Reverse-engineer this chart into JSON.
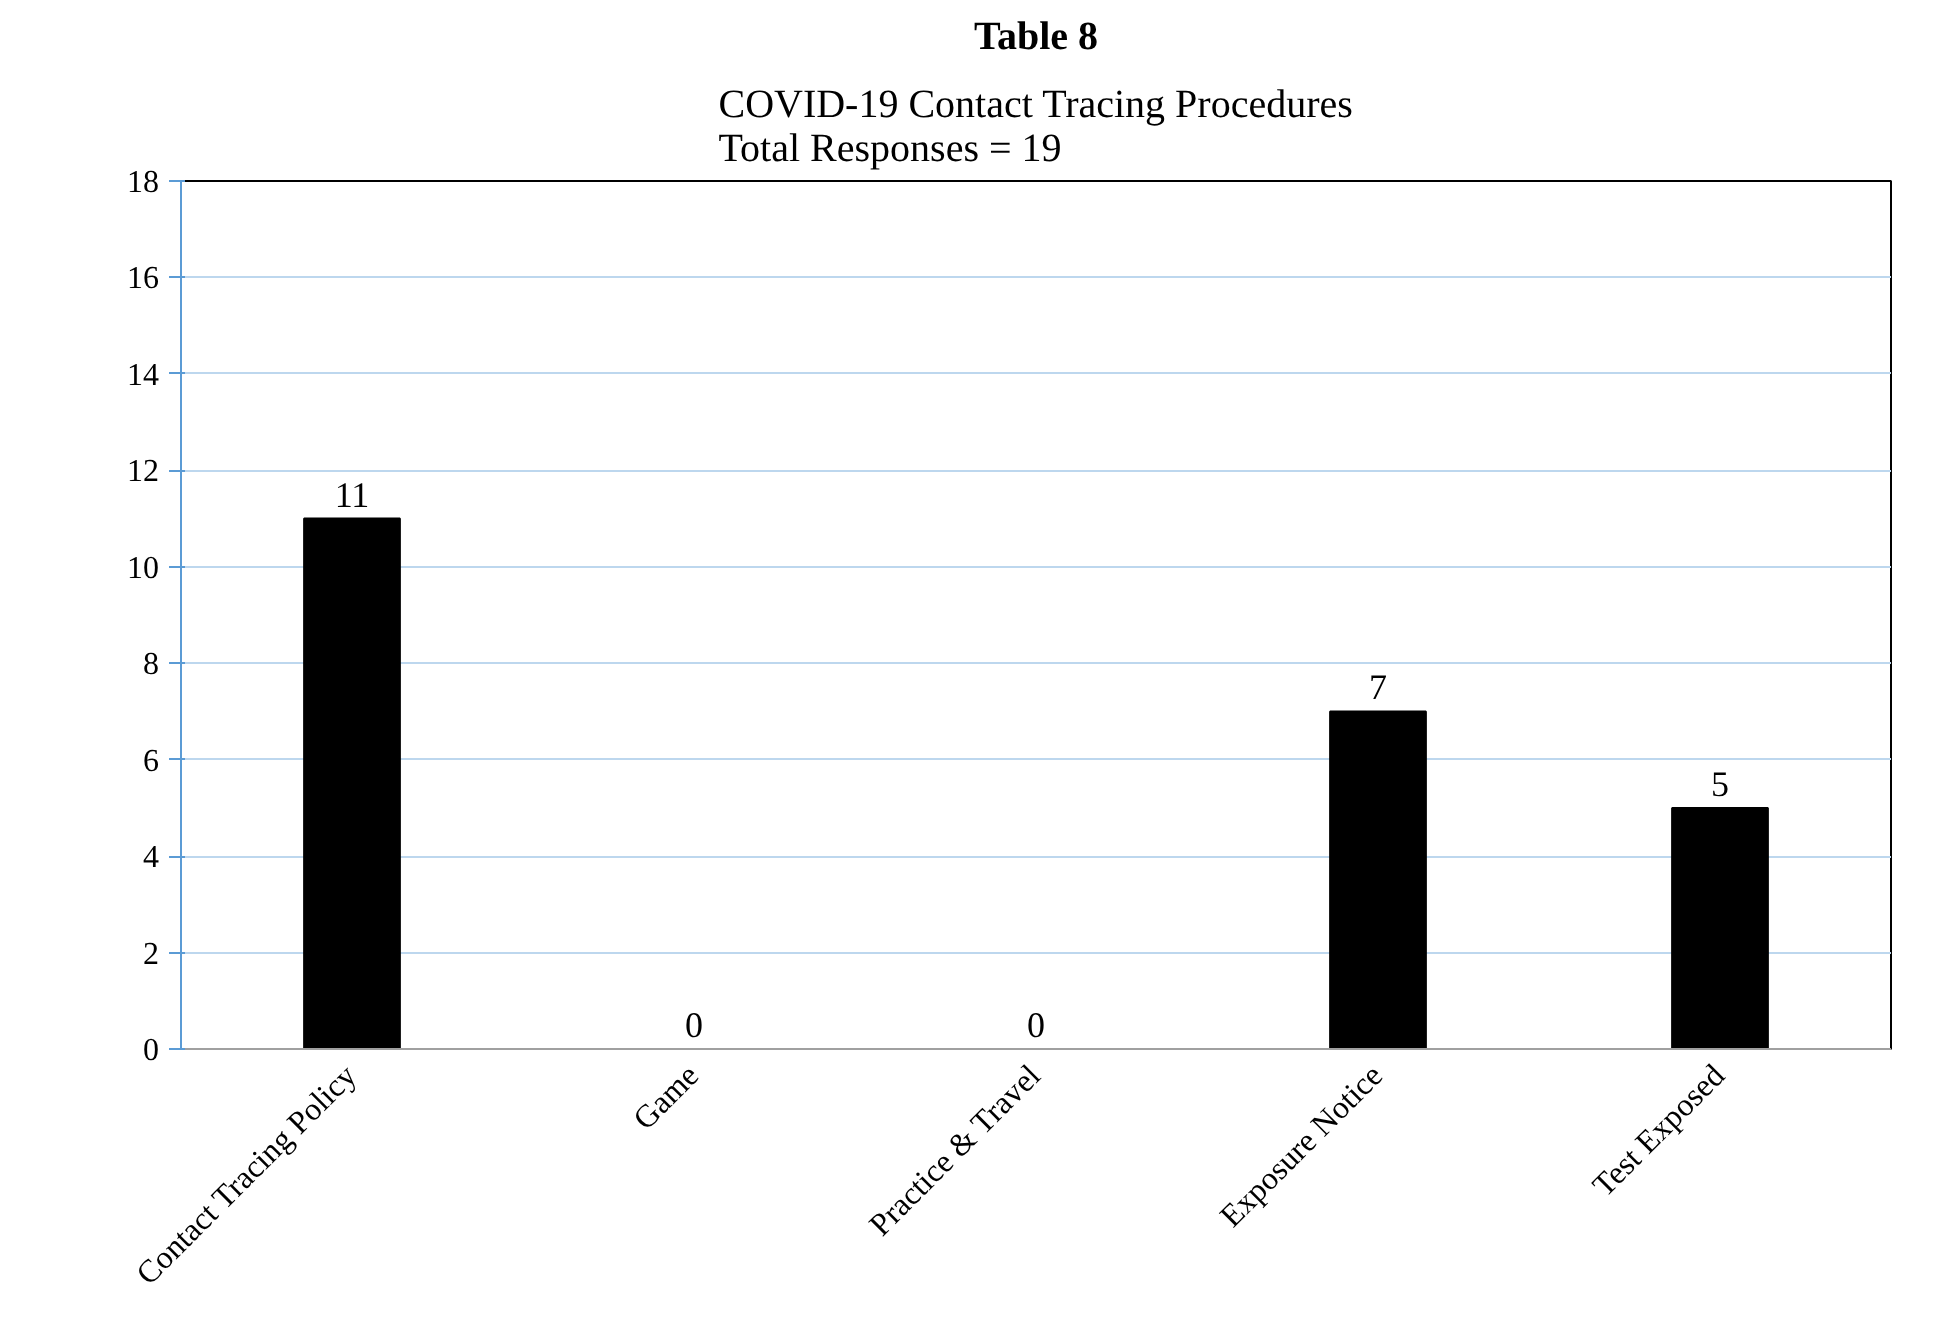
{
  "chart_data": {
    "type": "bar",
    "title": "Table 8",
    "subtitle": "COVID-19 Contact Tracing Procedures\nTotal Responses = 19",
    "categories": [
      "Contact Tracing Policy",
      "Game",
      "Practice & Travel",
      "Exposure Notice",
      "Test Exposed"
    ],
    "values": [
      11,
      0,
      0,
      7,
      5
    ],
    "color": "#000000",
    "ylim": [
      0,
      18
    ],
    "yticks": [
      0,
      2,
      4,
      6,
      8,
      10,
      12,
      14,
      16,
      18
    ],
    "grid": "y",
    "data_labels": true
  }
}
